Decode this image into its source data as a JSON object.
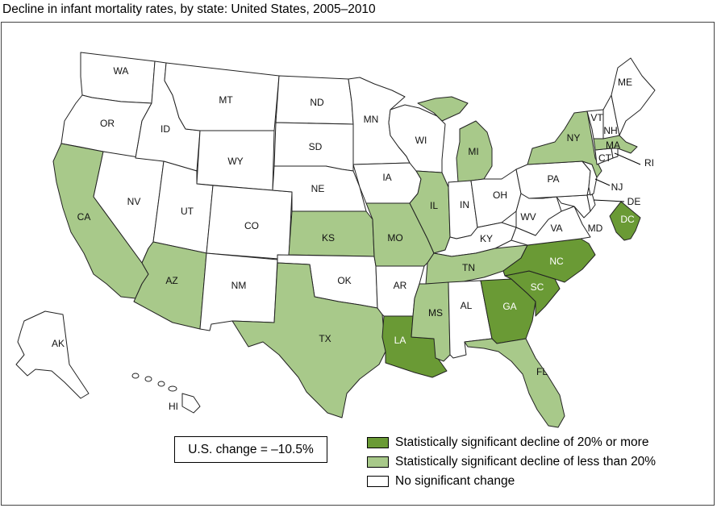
{
  "title": "Decline in infant mortality rates, by state: United States, 2005–2010",
  "us_change": "U.S. change = –10.5%",
  "colors": {
    "strong": "#6a9a35",
    "moderate": "#a8c98a",
    "none": "#ffffff",
    "border": "#222222"
  },
  "legend": [
    {
      "key": "strong",
      "label": "Statistically significant decline of 20% or more"
    },
    {
      "key": "moderate",
      "label": "Statistically significant decline of less than 20%"
    },
    {
      "key": "none",
      "label": "No significant change"
    }
  ],
  "states": {
    "WA": {
      "label": "WA",
      "category": "none"
    },
    "OR": {
      "label": "OR",
      "category": "none"
    },
    "CA": {
      "label": "CA",
      "category": "moderate"
    },
    "NV": {
      "label": "NV",
      "category": "none"
    },
    "ID": {
      "label": "ID",
      "category": "none"
    },
    "MT": {
      "label": "MT",
      "category": "none"
    },
    "WY": {
      "label": "WY",
      "category": "none"
    },
    "UT": {
      "label": "UT",
      "category": "none"
    },
    "AZ": {
      "label": "AZ",
      "category": "moderate"
    },
    "CO": {
      "label": "CO",
      "category": "none"
    },
    "NM": {
      "label": "NM",
      "category": "none"
    },
    "ND": {
      "label": "ND",
      "category": "none"
    },
    "SD": {
      "label": "SD",
      "category": "none"
    },
    "NE": {
      "label": "NE",
      "category": "none"
    },
    "KS": {
      "label": "KS",
      "category": "moderate"
    },
    "OK": {
      "label": "OK",
      "category": "none"
    },
    "TX": {
      "label": "TX",
      "category": "moderate"
    },
    "MN": {
      "label": "MN",
      "category": "none"
    },
    "IA": {
      "label": "IA",
      "category": "none"
    },
    "MO": {
      "label": "MO",
      "category": "moderate"
    },
    "AR": {
      "label": "AR",
      "category": "none"
    },
    "LA": {
      "label": "LA",
      "category": "strong"
    },
    "WI": {
      "label": "WI",
      "category": "none"
    },
    "IL": {
      "label": "IL",
      "category": "moderate"
    },
    "MI": {
      "label": "MI",
      "category": "moderate"
    },
    "IN": {
      "label": "IN",
      "category": "none"
    },
    "OH": {
      "label": "OH",
      "category": "none"
    },
    "KY": {
      "label": "KY",
      "category": "none"
    },
    "TN": {
      "label": "TN",
      "category": "moderate"
    },
    "MS": {
      "label": "MS",
      "category": "moderate"
    },
    "AL": {
      "label": "AL",
      "category": "none"
    },
    "GA": {
      "label": "GA",
      "category": "strong"
    },
    "FL": {
      "label": "FL",
      "category": "moderate"
    },
    "SC": {
      "label": "SC",
      "category": "strong"
    },
    "NC": {
      "label": "NC",
      "category": "strong"
    },
    "VA": {
      "label": "VA",
      "category": "none"
    },
    "WV": {
      "label": "WV",
      "category": "none"
    },
    "MD": {
      "label": "MD",
      "category": "none"
    },
    "DE": {
      "label": "DE",
      "category": "none"
    },
    "DC": {
      "label": "DC",
      "category": "strong"
    },
    "PA": {
      "label": "PA",
      "category": "none"
    },
    "NJ": {
      "label": "NJ",
      "category": "none"
    },
    "NY": {
      "label": "NY",
      "category": "moderate"
    },
    "CT": {
      "label": "CT",
      "category": "none"
    },
    "RI": {
      "label": "RI",
      "category": "none"
    },
    "MA": {
      "label": "MA",
      "category": "moderate"
    },
    "VT": {
      "label": "VT",
      "category": "none"
    },
    "NH": {
      "label": "NH",
      "category": "none"
    },
    "ME": {
      "label": "ME",
      "category": "none"
    },
    "AK": {
      "label": "AK",
      "category": "none"
    },
    "HI": {
      "label": "HI",
      "category": "none"
    }
  }
}
